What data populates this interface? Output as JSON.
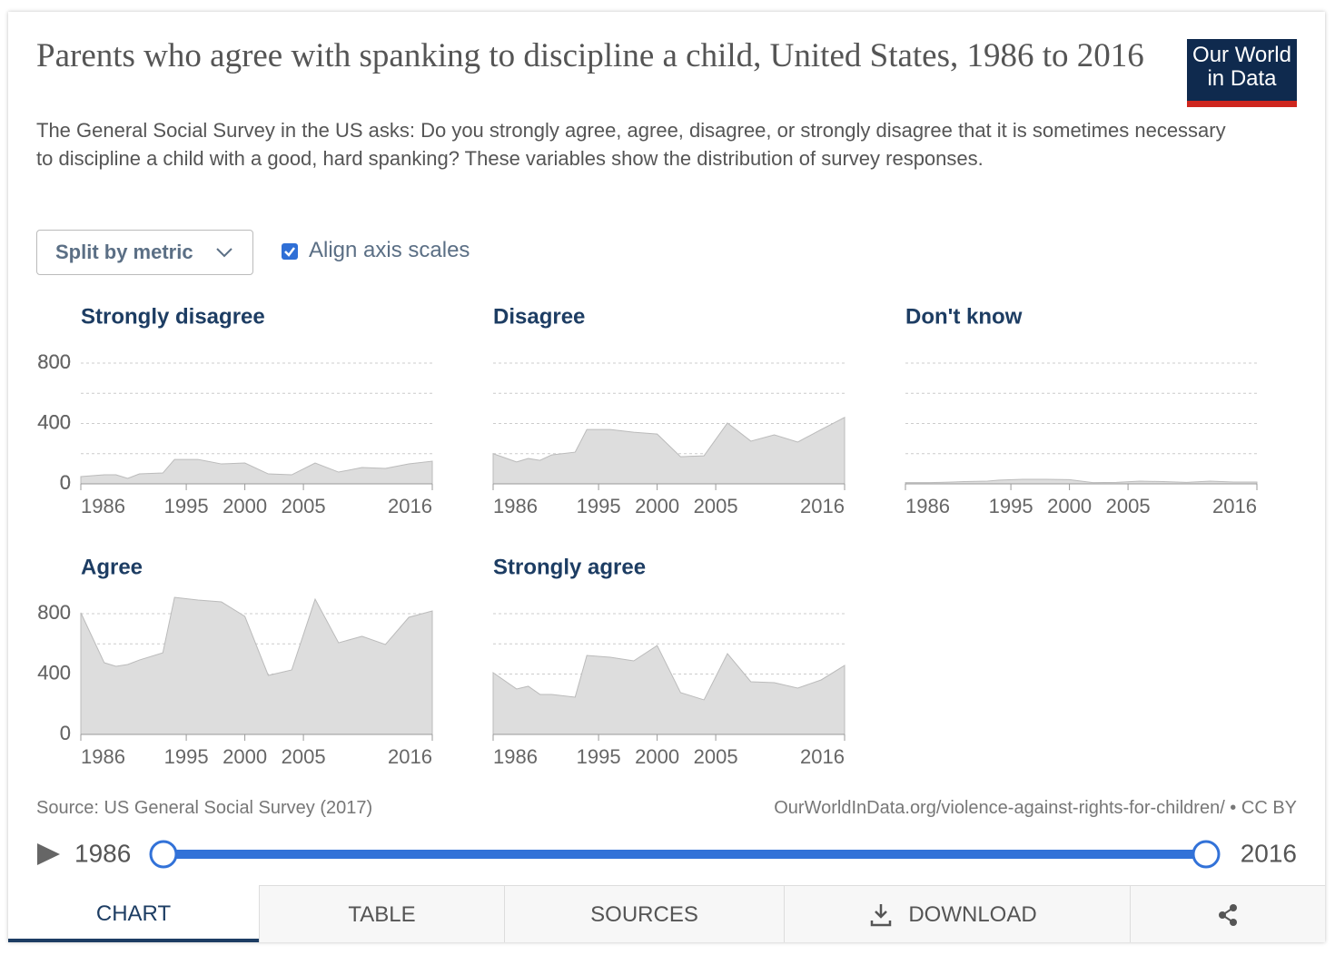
{
  "header": {
    "title": "Parents who agree with spanking to discipline a child, United States, 1986 to 2016",
    "subtitle": "The General Social Survey in the US asks: Do you strongly agree, agree, disagree, or strongly disagree that it is sometimes necessary to discipline a child with a good, hard spanking? These variables show the distribution of survey responses.",
    "logo": [
      "Our World",
      "in Data"
    ]
  },
  "controls": {
    "dropdown": "Split by metric",
    "checkbox": "Align axis scales"
  },
  "chart_data": [
    {
      "type": "area",
      "title": "Strongly disagree",
      "color": "#dddddd",
      "x": [
        1986,
        1988,
        1989,
        1990,
        1991,
        1993,
        1994,
        1996,
        1998,
        2000,
        2002,
        2004,
        2006,
        2008,
        2010,
        2012,
        2014,
        2016
      ],
      "values": [
        48,
        60,
        60,
        36,
        66,
        72,
        162,
        162,
        132,
        138,
        66,
        60,
        138,
        78,
        108,
        102,
        132,
        150
      ],
      "xlim": [
        1986,
        2016
      ],
      "ylim": [
        0,
        800
      ],
      "xticks": [
        1986,
        1995,
        2000,
        2005,
        2016
      ],
      "yticks": [
        0,
        400,
        800
      ],
      "minor_yticks": [
        200,
        600
      ]
    },
    {
      "type": "area",
      "title": "Disagree",
      "color": "#dddddd",
      "x": [
        1986,
        1988,
        1989,
        1990,
        1991,
        1993,
        1994,
        1996,
        1998,
        2000,
        2002,
        2004,
        2006,
        2008,
        2010,
        2012,
        2014,
        2016
      ],
      "values": [
        200,
        145,
        168,
        156,
        192,
        210,
        360,
        360,
        342,
        330,
        180,
        186,
        403,
        283,
        325,
        277,
        360,
        440
      ],
      "xlim": [
        1986,
        2016
      ],
      "ylim": [
        0,
        800
      ],
      "xticks": [
        1986,
        1995,
        2000,
        2005,
        2016
      ],
      "yticks": [
        0,
        400,
        800
      ],
      "minor_yticks": [
        200,
        600
      ]
    },
    {
      "type": "area",
      "title": "Don't know",
      "color": "#dddddd",
      "x": [
        1986,
        1988,
        1989,
        1990,
        1991,
        1993,
        1994,
        1996,
        1998,
        2000,
        2002,
        2004,
        2006,
        2008,
        2010,
        2012,
        2014,
        2016
      ],
      "values": [
        8,
        8,
        10,
        12,
        15,
        18,
        25,
        30,
        30,
        28,
        8,
        10,
        18,
        15,
        10,
        18,
        12,
        12
      ],
      "xlim": [
        1986,
        2016
      ],
      "ylim": [
        0,
        800
      ],
      "xticks": [
        1986,
        1995,
        2000,
        2005,
        2016
      ],
      "yticks": [
        0,
        400,
        800
      ],
      "minor_yticks": [
        200,
        600
      ]
    },
    {
      "type": "area",
      "title": "Agree",
      "color": "#dddddd",
      "x": [
        1986,
        1988,
        1989,
        1990,
        1991,
        1993,
        1994,
        1996,
        1998,
        2000,
        2002,
        2004,
        2006,
        2008,
        2010,
        2012,
        2014,
        2016
      ],
      "values": [
        806,
        475,
        451,
        463,
        493,
        541,
        908,
        890,
        878,
        782,
        391,
        427,
        896,
        607,
        650,
        596,
        776,
        818
      ],
      "xlim": [
        1986,
        2016
      ],
      "ylim": [
        0,
        800
      ],
      "xticks": [
        1986,
        1995,
        2000,
        2005,
        2016
      ],
      "yticks": [
        0,
        400,
        800
      ],
      "minor_yticks": [
        200,
        600
      ]
    },
    {
      "type": "area",
      "title": "Strongly agree",
      "color": "#dddddd",
      "x": [
        1986,
        1988,
        1989,
        1990,
        1991,
        1993,
        1994,
        1996,
        1998,
        2000,
        2002,
        2004,
        2006,
        2008,
        2010,
        2012,
        2014,
        2016
      ],
      "values": [
        409,
        301,
        319,
        265,
        265,
        247,
        523,
        511,
        487,
        589,
        277,
        229,
        535,
        349,
        343,
        307,
        361,
        457
      ],
      "xlim": [
        1986,
        2016
      ],
      "ylim": [
        0,
        800
      ],
      "xticks": [
        1986,
        1995,
        2000,
        2005,
        2016
      ],
      "yticks": [
        0,
        400,
        800
      ],
      "minor_yticks": [
        200,
        600
      ]
    }
  ],
  "footer": {
    "source": "Source: US General Social Survey (2017)",
    "url": "OurWorldInData.org/violence-against-rights-for-children/ • CC BY"
  },
  "timeline": {
    "start": 1986,
    "end": 2016
  },
  "tabs": [
    "CHART",
    "TABLE",
    "SOURCES",
    "DOWNLOAD"
  ]
}
